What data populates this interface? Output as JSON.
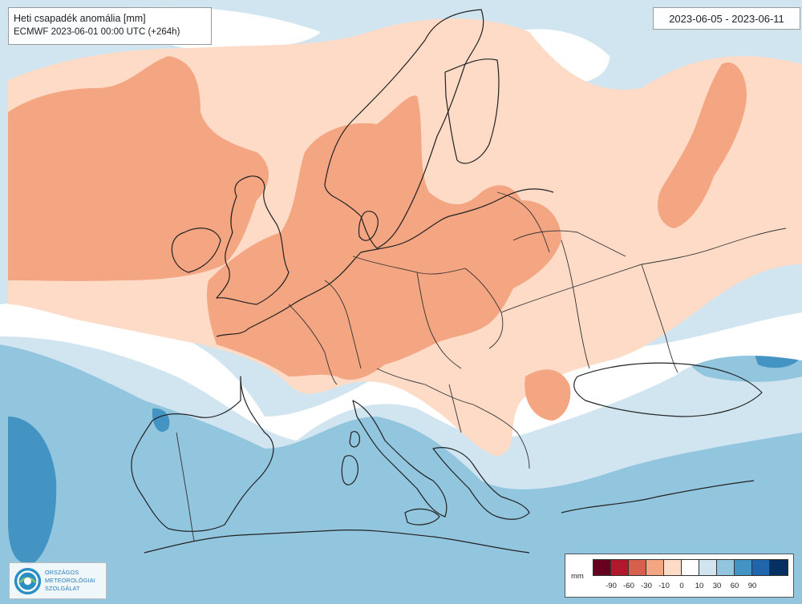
{
  "title": {
    "line1": "Heti csapadék anomália [mm]",
    "line2": "ECMWF 2023-06-01 00:00 UTC (+264h)"
  },
  "date_range": "2023-06-05 - 2023-06-11",
  "logo": {
    "lines": [
      "ORSZÁGOS",
      "METEOROLÓGIAI",
      "SZOLGÁLAT"
    ]
  },
  "legend": {
    "unit": "mm",
    "colors": [
      "#67001f",
      "#b2182b",
      "#d6604d",
      "#f4a582",
      "#fddbc7",
      "#ffffff",
      "#d1e5f0",
      "#92c5de",
      "#4393c3",
      "#2166ac",
      "#053061"
    ],
    "ticks": [
      "-90",
      "-60",
      "-30",
      "-10",
      "0",
      "10",
      "30",
      "60",
      "90"
    ]
  },
  "map_colors": {
    "sea": "#cfe1ef",
    "light_positive": "#d1e5f0",
    "medium_positive": "#92c5de",
    "strong_positive": "#4393c3",
    "neutral": "#ffffff",
    "light_negative": "#fddbc7",
    "medium_negative": "#f4a582",
    "coast": "#222222"
  }
}
